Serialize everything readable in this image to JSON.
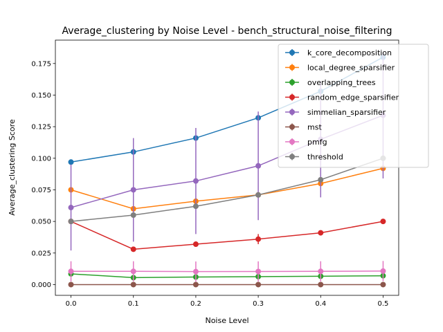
{
  "chart_data": {
    "type": "line",
    "title": "Average_clustering by Noise Level - bench_structural_noise_filtering",
    "xlabel": "Noise Level",
    "ylabel": "Average_clustering Score",
    "x": [
      0.0,
      0.1,
      0.2,
      0.3,
      0.4,
      0.5
    ],
    "xticks": [
      "0.0",
      "0.1",
      "0.2",
      "0.3",
      "0.4",
      "0.5"
    ],
    "xlim": [
      -0.025,
      0.525
    ],
    "yticks": [
      "0.000",
      "0.025",
      "0.050",
      "0.075",
      "0.100",
      "0.125",
      "0.150",
      "0.175"
    ],
    "ylim": [
      -0.0085,
      0.1935
    ],
    "grid": false,
    "legend_position": "top-right",
    "series": [
      {
        "name": "k_core_decomposition",
        "color": "#1f77b4",
        "values": [
          0.097,
          0.105,
          0.116,
          0.132,
          0.153,
          0.18
        ],
        "errors": [
          0.001,
          0.001,
          0.001,
          0.002,
          0.002,
          0.003
        ]
      },
      {
        "name": "local_degree_sparsifier",
        "color": "#ff7f0e",
        "values": [
          0.075,
          0.06,
          0.066,
          0.071,
          0.08,
          0.092
        ],
        "errors": [
          0.001,
          0.001,
          0.001,
          0.001,
          0.001,
          0.001
        ]
      },
      {
        "name": "overlapping_trees",
        "color": "#2ca02c",
        "values": [
          0.0085,
          0.0055,
          0.006,
          0.0063,
          0.0066,
          0.007
        ],
        "errors": [
          0.0005,
          0.0005,
          0.0005,
          0.0005,
          0.0005,
          0.0005
        ]
      },
      {
        "name": "random_edge_sparsifier",
        "color": "#d62728",
        "values": [
          0.05,
          0.028,
          0.032,
          0.036,
          0.041,
          0.05
        ],
        "errors": [
          0.002,
          0.002,
          0.002,
          0.004,
          0.002,
          0.002
        ]
      },
      {
        "name": "simmelian_sparsifier",
        "color": "#9467bd",
        "values": [
          0.061,
          0.075,
          0.082,
          0.094,
          0.115,
          0.134
        ],
        "errors": [
          0.034,
          0.041,
          0.042,
          0.043,
          0.046,
          0.05
        ]
      },
      {
        "name": "mst",
        "color": "#8c564b",
        "values": [
          0.0,
          0.0,
          0.0,
          0.0,
          0.0,
          0.0
        ],
        "errors": [
          0.0,
          0.0,
          0.0,
          0.0,
          0.0,
          0.0
        ]
      },
      {
        "name": "pmfg",
        "color": "#e377c2",
        "values": [
          0.0105,
          0.0105,
          0.0103,
          0.0104,
          0.0105,
          0.0107
        ],
        "errors": [
          0.008,
          0.008,
          0.008,
          0.008,
          0.008,
          0.008
        ]
      },
      {
        "name": "threshold",
        "color": "#7f7f7f",
        "values": [
          0.05,
          0.055,
          0.062,
          0.071,
          0.083,
          0.1
        ],
        "errors": [
          0.001,
          0.001,
          0.001,
          0.001,
          0.001,
          0.001
        ]
      }
    ]
  }
}
